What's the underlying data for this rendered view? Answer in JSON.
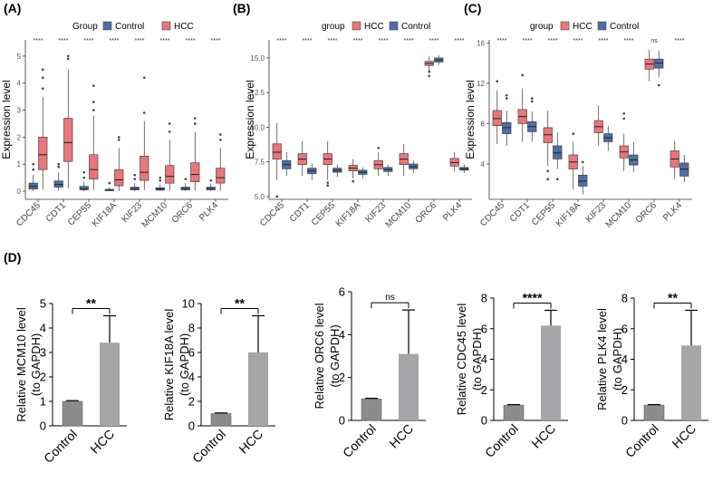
{
  "panels": {
    "A": {
      "label": "(A)"
    },
    "B": {
      "label": "(B)"
    },
    "C": {
      "label": "(C)"
    },
    "D": {
      "label": "(D)"
    }
  },
  "colors": {
    "control": "#4f6fa3",
    "hcc": "#e8767a",
    "control_bar": "#8c8c8c",
    "hcc_bar": "#a6a6a9"
  },
  "chart_data": [
    {
      "id": "A",
      "type": "box",
      "legend_title": "Group",
      "legend": [
        "Control",
        "HCC"
      ],
      "legend_position": "top",
      "ylabel": "Expression level",
      "ylim": [
        -0.3,
        5.6
      ],
      "yticks": [
        0,
        1,
        2,
        3,
        4,
        5
      ],
      "categories": [
        "CDC45",
        "CDT1",
        "CEP55",
        "KIF18A",
        "KIF23",
        "MCM10",
        "ORC6",
        "PLK4"
      ],
      "significance": [
        "****",
        "****",
        "****",
        "****",
        "****",
        "****",
        "****",
        "****"
      ],
      "series": [
        {
          "name": "Control",
          "boxes": [
            {
              "min": 0,
              "q1": 0.08,
              "median": 0.18,
              "q3": 0.3,
              "max": 0.6,
              "outliers": [
                0.8,
                1.0
              ]
            },
            {
              "min": 0.02,
              "q1": 0.15,
              "median": 0.25,
              "q3": 0.38,
              "max": 0.7,
              "outliers": [
                0.9,
                1.0
              ]
            },
            {
              "min": 0,
              "q1": 0.05,
              "median": 0.1,
              "q3": 0.18,
              "max": 0.35,
              "outliers": [
                0.5,
                0.7
              ]
            },
            {
              "min": 0,
              "q1": 0.02,
              "median": 0.04,
              "q3": 0.07,
              "max": 0.15,
              "outliers": [
                0.3
              ]
            },
            {
              "min": 0,
              "q1": 0.05,
              "median": 0.1,
              "q3": 0.15,
              "max": 0.3,
              "outliers": [
                0.45,
                0.6
              ]
            },
            {
              "min": 0,
              "q1": 0.04,
              "median": 0.08,
              "q3": 0.13,
              "max": 0.25,
              "outliers": [
                0.4,
                0.5
              ]
            },
            {
              "min": 0,
              "q1": 0.05,
              "median": 0.1,
              "q3": 0.15,
              "max": 0.3,
              "outliers": [
                0.45
              ]
            },
            {
              "min": 0,
              "q1": 0.05,
              "median": 0.1,
              "q3": 0.15,
              "max": 0.28,
              "outliers": [
                0.4
              ]
            }
          ]
        },
        {
          "name": "HCC",
          "boxes": [
            {
              "min": 0.05,
              "q1": 0.8,
              "median": 1.35,
              "q3": 2.0,
              "max": 3.5,
              "outliers": [
                3.8,
                4.2,
                4.5
              ]
            },
            {
              "min": 0.1,
              "q1": 1.1,
              "median": 1.8,
              "q3": 2.7,
              "max": 4.5,
              "outliers": [
                4.9,
                5.0
              ]
            },
            {
              "min": 0.05,
              "q1": 0.45,
              "median": 0.8,
              "q3": 1.35,
              "max": 2.8,
              "outliers": [
                3.0,
                3.3,
                3.9
              ]
            },
            {
              "min": 0,
              "q1": 0.2,
              "median": 0.42,
              "q3": 0.8,
              "max": 1.6,
              "outliers": [
                1.9,
                2.0
              ]
            },
            {
              "min": 0.05,
              "q1": 0.4,
              "median": 0.7,
              "q3": 1.3,
              "max": 2.6,
              "outliers": [
                2.9,
                4.2
              ]
            },
            {
              "min": 0.02,
              "q1": 0.3,
              "median": 0.55,
              "q3": 0.95,
              "max": 1.9,
              "outliers": [
                2.2,
                2.5
              ]
            },
            {
              "min": 0.02,
              "q1": 0.35,
              "median": 0.62,
              "q3": 1.05,
              "max": 2.2,
              "outliers": [
                2.5,
                2.7
              ]
            },
            {
              "min": 0.02,
              "q1": 0.3,
              "median": 0.5,
              "q3": 0.85,
              "max": 1.6,
              "outliers": [
                1.9,
                2.1
              ]
            }
          ]
        }
      ]
    },
    {
      "id": "B",
      "type": "box",
      "legend_title": "group",
      "legend": [
        "HCC",
        "Control"
      ],
      "legend_position": "top",
      "ylabel": "Expression level",
      "ylim": [
        4.8,
        16.3
      ],
      "yticks": [
        5.0,
        7.5,
        10.0,
        12.5,
        15.0
      ],
      "ytick_labels": [
        "5.0",
        "7.5",
        "10.0",
        "12.5",
        "15.0"
      ],
      "categories": [
        "CDC45",
        "CDT1",
        "CEP55",
        "KIF18A",
        "KIF23",
        "MCM10",
        "ORC6",
        "PLK4"
      ],
      "significance": [
        "****",
        "****",
        "****",
        "****",
        "****",
        "****",
        "****",
        "****"
      ],
      "series": [
        {
          "name": "HCC",
          "boxes": [
            {
              "min": 6.2,
              "q1": 7.7,
              "median": 8.2,
              "q3": 8.8,
              "max": 10.3,
              "outliers": [
                5.0
              ]
            },
            {
              "min": 6.5,
              "q1": 7.3,
              "median": 7.7,
              "q3": 8.1,
              "max": 9.0,
              "outliers": []
            },
            {
              "min": 6.2,
              "q1": 7.3,
              "median": 7.7,
              "q3": 8.1,
              "max": 9.0,
              "outliers": [
                6.0,
                5.8
              ]
            },
            {
              "min": 6.3,
              "q1": 6.85,
              "median": 7.05,
              "q3": 7.25,
              "max": 7.7,
              "outliers": [
                6.1
              ]
            },
            {
              "min": 6.5,
              "q1": 7.0,
              "median": 7.3,
              "q3": 7.6,
              "max": 8.2,
              "outliers": [
                8.5
              ]
            },
            {
              "min": 6.5,
              "q1": 7.3,
              "median": 7.7,
              "q3": 8.1,
              "max": 8.8,
              "outliers": []
            },
            {
              "min": 14.0,
              "q1": 14.45,
              "median": 14.6,
              "q3": 14.75,
              "max": 15.1,
              "outliers": [
                13.7,
                14.0
              ]
            },
            {
              "min": 6.8,
              "q1": 7.2,
              "median": 7.45,
              "q3": 7.75,
              "max": 8.2,
              "outliers": []
            }
          ]
        },
        {
          "name": "Control",
          "boxes": [
            {
              "min": 6.5,
              "q1": 7.0,
              "median": 7.3,
              "q3": 7.6,
              "max": 8.2,
              "outliers": []
            },
            {
              "min": 6.2,
              "q1": 6.65,
              "median": 6.85,
              "q3": 7.05,
              "max": 7.4,
              "outliers": []
            },
            {
              "min": 6.4,
              "q1": 6.75,
              "median": 6.9,
              "q3": 7.05,
              "max": 7.3,
              "outliers": []
            },
            {
              "min": 6.3,
              "q1": 6.6,
              "median": 6.75,
              "q3": 6.9,
              "max": 7.1,
              "outliers": []
            },
            {
              "min": 6.5,
              "q1": 6.8,
              "median": 6.95,
              "q3": 7.1,
              "max": 7.3,
              "outliers": []
            },
            {
              "min": 6.7,
              "q1": 7.0,
              "median": 7.15,
              "q3": 7.35,
              "max": 7.6,
              "outliers": []
            },
            {
              "min": 14.5,
              "q1": 14.7,
              "median": 14.85,
              "q3": 15.0,
              "max": 15.2,
              "outliers": []
            },
            {
              "min": 6.7,
              "q1": 6.9,
              "median": 7.0,
              "q3": 7.1,
              "max": 7.3,
              "outliers": []
            }
          ]
        }
      ]
    },
    {
      "id": "C",
      "type": "box",
      "legend_title": "group",
      "legend": [
        "HCC",
        "Control"
      ],
      "legend_position": "top",
      "ylabel": "Expression level",
      "ylim": [
        0.5,
        16.3
      ],
      "yticks": [
        4,
        8,
        12,
        16
      ],
      "categories": [
        "CDC45",
        "CDT1",
        "CEP55",
        "KIF18A",
        "KIF23",
        "MCM10",
        "ORC6",
        "PLK4"
      ],
      "significance": [
        "****",
        "****",
        "****",
        "****",
        "****",
        "****",
        "ns",
        "****"
      ],
      "series": [
        {
          "name": "HCC",
          "boxes": [
            {
              "min": 6.0,
              "q1": 7.8,
              "median": 8.5,
              "q3": 9.3,
              "max": 11.3,
              "outliers": [
                12.2
              ]
            },
            {
              "min": 6.2,
              "q1": 8.0,
              "median": 8.7,
              "q3": 9.4,
              "max": 11.5,
              "outliers": [
                12.8
              ]
            },
            {
              "min": 3.8,
              "q1": 6.1,
              "median": 6.9,
              "q3": 7.6,
              "max": 9.3,
              "outliers": [
                3.3,
                2.5
              ]
            },
            {
              "min": 1.5,
              "q1": 3.5,
              "median": 4.2,
              "q3": 4.9,
              "max": 6.2,
              "outliers": [
                7.0
              ]
            },
            {
              "min": 5.8,
              "q1": 7.1,
              "median": 7.7,
              "q3": 8.3,
              "max": 9.8,
              "outliers": []
            },
            {
              "min": 3.3,
              "q1": 4.6,
              "median": 5.2,
              "q3": 5.8,
              "max": 7.0,
              "outliers": [
                8.5,
                9.0
              ]
            },
            {
              "min": 12.2,
              "q1": 13.4,
              "median": 13.9,
              "q3": 14.4,
              "max": 15.3,
              "outliers": []
            },
            {
              "min": 2.5,
              "q1": 3.7,
              "median": 4.5,
              "q3": 5.3,
              "max": 6.3,
              "outliers": []
            }
          ]
        },
        {
          "name": "Control",
          "boxes": [
            {
              "min": 5.8,
              "q1": 7.0,
              "median": 7.6,
              "q3": 8.1,
              "max": 9.3,
              "outliers": [
                10.5,
                10.8
              ]
            },
            {
              "min": 6.2,
              "q1": 7.2,
              "median": 7.7,
              "q3": 8.2,
              "max": 9.2,
              "outliers": [
                10.2,
                10.5
              ]
            },
            {
              "min": 3.5,
              "q1": 4.5,
              "median": 5.1,
              "q3": 5.8,
              "max": 7.1,
              "outliers": [
                2.5
              ]
            },
            {
              "min": 1.0,
              "q1": 1.8,
              "median": 2.3,
              "q3": 2.9,
              "max": 3.8,
              "outliers": [
                4.2
              ]
            },
            {
              "min": 5.3,
              "q1": 6.2,
              "median": 6.6,
              "q3": 7.0,
              "max": 7.8,
              "outliers": []
            },
            {
              "min": 3.2,
              "q1": 3.9,
              "median": 4.4,
              "q3": 4.9,
              "max": 6.2,
              "outliers": []
            },
            {
              "min": 12.6,
              "q1": 13.5,
              "median": 14.0,
              "q3": 14.4,
              "max": 15.2,
              "outliers": [
                11.8
              ]
            },
            {
              "min": 2.2,
              "q1": 2.8,
              "median": 3.5,
              "q3": 4.1,
              "max": 4.9,
              "outliers": []
            }
          ]
        }
      ]
    },
    {
      "id": "D1",
      "type": "bar",
      "ylabel": [
        "Relative MCM10 level",
        "(to GAPDH)"
      ],
      "ylim": [
        0,
        5
      ],
      "yticks": [
        0,
        1,
        2,
        3,
        4,
        5
      ],
      "categories": [
        "Control",
        "HCC"
      ],
      "values": [
        1.0,
        3.4
      ],
      "errors": [
        0.03,
        1.1
      ],
      "significance": "**"
    },
    {
      "id": "D2",
      "type": "bar",
      "ylabel": [
        "Relative KIF18A level",
        "(to GAPDH)"
      ],
      "ylim": [
        0,
        10
      ],
      "yticks": [
        0,
        2,
        4,
        6,
        8,
        10
      ],
      "categories": [
        "Control",
        "HCC"
      ],
      "values": [
        1.0,
        6.0
      ],
      "errors": [
        0.05,
        3.0
      ],
      "significance": "**"
    },
    {
      "id": "D3",
      "type": "bar",
      "ylabel": [
        "Relative ORC6 level",
        "(to GAPDH)"
      ],
      "ylim": [
        0,
        6
      ],
      "yticks": [
        0,
        2,
        4,
        6
      ],
      "categories": [
        "Control",
        "HCC"
      ],
      "values": [
        1.0,
        3.1
      ],
      "errors": [
        0.03,
        2.05
      ],
      "significance": "ns"
    },
    {
      "id": "D4",
      "type": "bar",
      "ylabel": [
        "Relative CDC45 level",
        "(to GAPDH)"
      ],
      "ylim": [
        0,
        8
      ],
      "yticks": [
        0,
        2,
        4,
        6,
        8
      ],
      "categories": [
        "Control",
        "HCC"
      ],
      "values": [
        1.0,
        6.2
      ],
      "errors": [
        0.03,
        1.0
      ],
      "significance": "****"
    },
    {
      "id": "D5",
      "type": "bar",
      "ylabel": [
        "Relative PLK4 level",
        "(to GAPDH)"
      ],
      "ylim": [
        0,
        8
      ],
      "yticks": [
        0,
        2,
        4,
        6,
        8
      ],
      "categories": [
        "Control",
        "HCC"
      ],
      "values": [
        1.0,
        4.9
      ],
      "errors": [
        0.03,
        2.3
      ],
      "significance": "**"
    }
  ]
}
